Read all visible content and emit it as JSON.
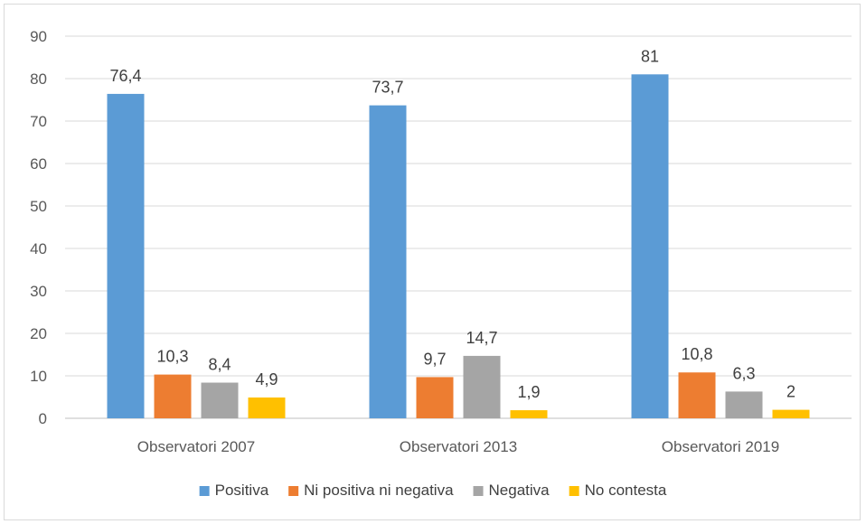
{
  "chart_data": {
    "type": "bar",
    "categories": [
      "Observatori 2007",
      "Observatori 2013",
      "Observatori 2019"
    ],
    "series": [
      {
        "name": "Positiva",
        "values": [
          76.4,
          73.7,
          81
        ],
        "labels": [
          "76,4",
          "73,7",
          "81"
        ],
        "color": "#5b9bd5"
      },
      {
        "name": "Ni positiva ni negativa",
        "values": [
          10.3,
          9.7,
          10.8
        ],
        "labels": [
          "10,3",
          "9,7",
          "10,8"
        ],
        "color": "#ed7d31"
      },
      {
        "name": "Negativa",
        "values": [
          8.4,
          14.7,
          6.3
        ],
        "labels": [
          "8,4",
          "14,7",
          "6,3"
        ],
        "color": "#a5a5a5"
      },
      {
        "name": "No contesta",
        "values": [
          4.9,
          1.9,
          2
        ],
        "labels": [
          "4,9",
          "1,9",
          "2"
        ],
        "color": "#ffc000"
      }
    ],
    "title": "",
    "xlabel": "",
    "ylabel": "",
    "ylim": [
      0,
      90
    ],
    "yticks": [
      "0",
      "10",
      "20",
      "30",
      "40",
      "50",
      "60",
      "70",
      "80",
      "90"
    ],
    "grid": true,
    "legend": "bottom"
  }
}
